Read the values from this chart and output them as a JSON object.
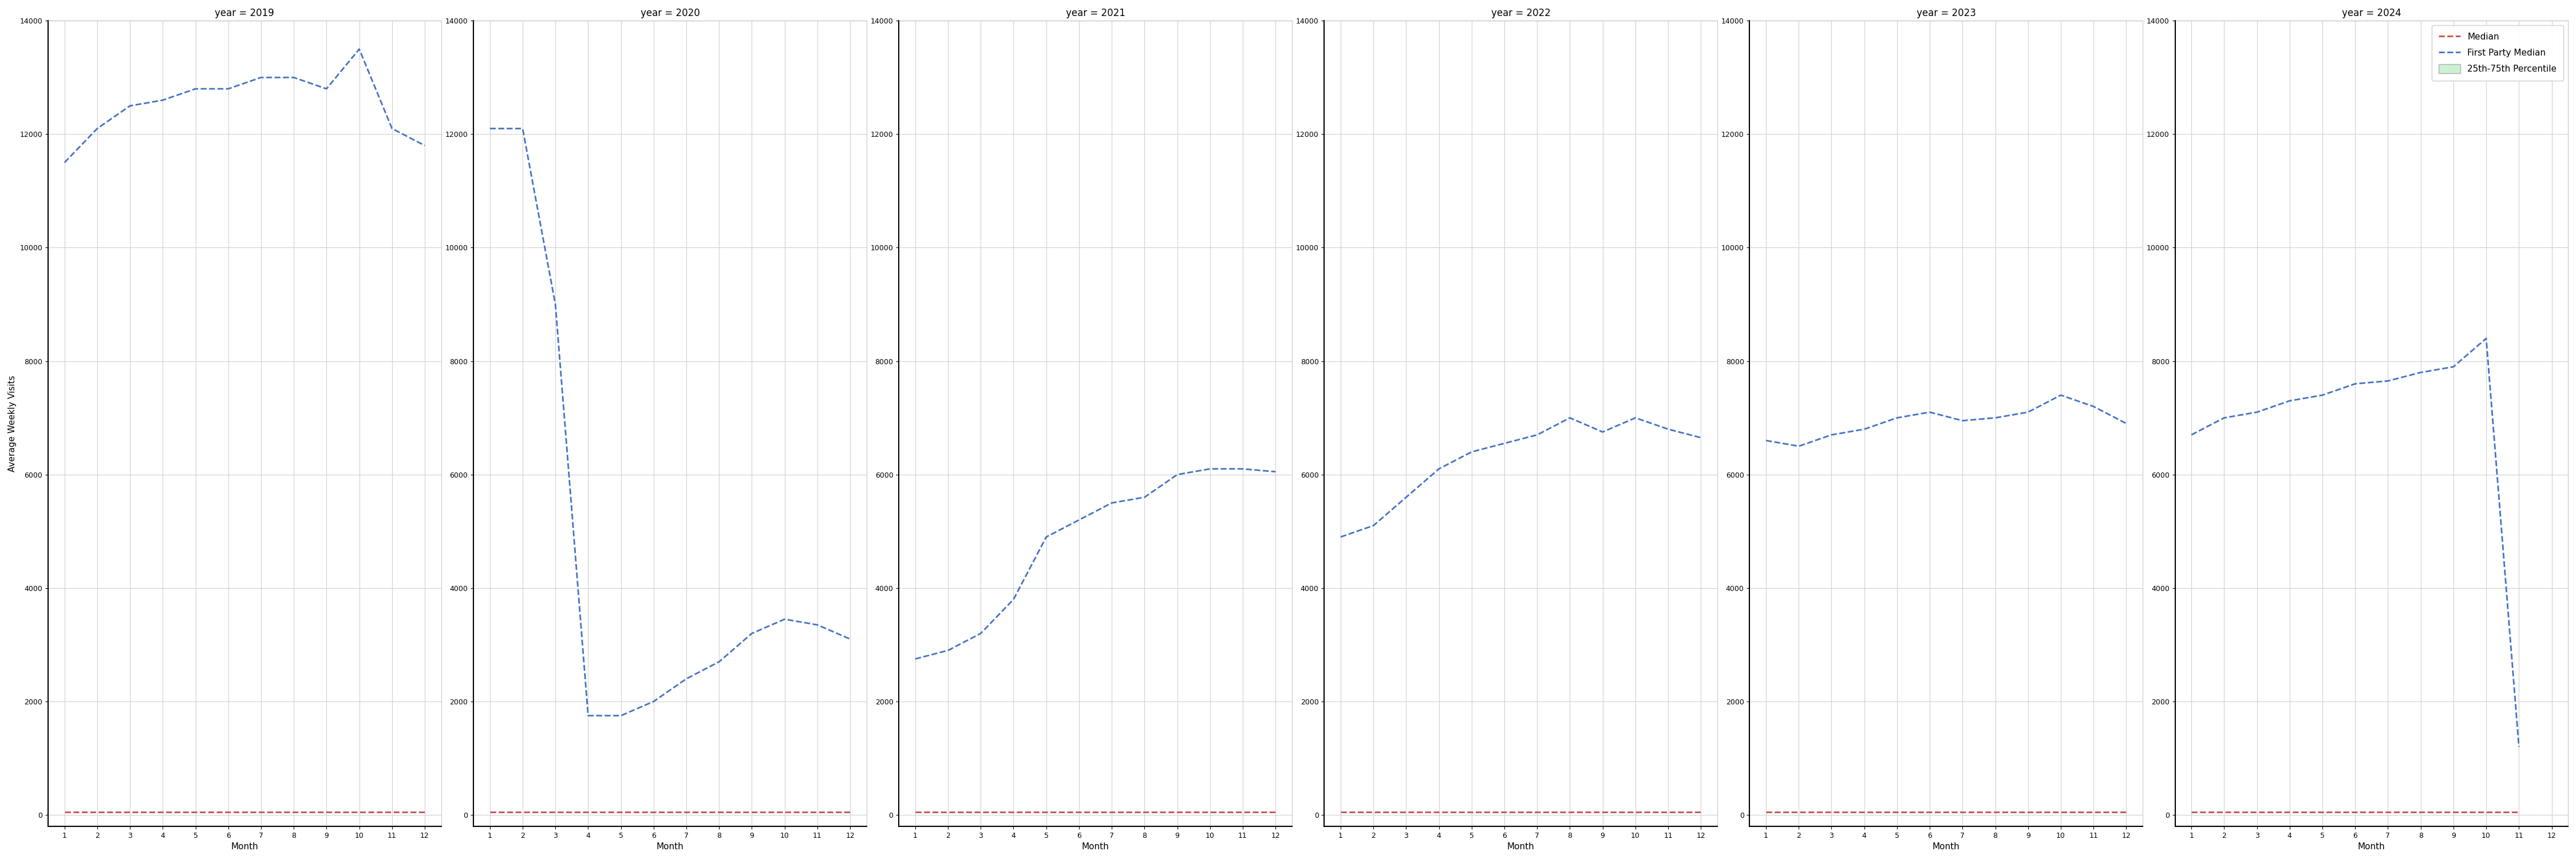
{
  "years": [
    2019,
    2020,
    2021,
    2022,
    2023,
    2024
  ],
  "first_party_median": {
    "2019": [
      11500,
      12100,
      12500,
      12600,
      12800,
      12800,
      13000,
      13000,
      12800,
      13500,
      12100,
      11800
    ],
    "2020": [
      12100,
      12100,
      9000,
      1750,
      1750,
      2000,
      2400,
      2700,
      3200,
      3450,
      3350,
      3100
    ],
    "2021": [
      2750,
      2900,
      3200,
      3800,
      4900,
      5200,
      5500,
      5600,
      6000,
      6100,
      6100,
      6050
    ],
    "2022": [
      4900,
      5100,
      5600,
      6100,
      6400,
      6550,
      6700,
      7000,
      6750,
      7000,
      6800,
      6650
    ],
    "2023": [
      6600,
      6500,
      6700,
      6800,
      7000,
      7100,
      6950,
      7000,
      7100,
      7400,
      7200,
      6900
    ],
    "2024": [
      6700,
      7000,
      7100,
      7300,
      7400,
      7600,
      7650,
      7800,
      7900,
      8400,
      1200,
      null
    ]
  },
  "median": {
    "2019": [
      50,
      50,
      50,
      50,
      50,
      50,
      50,
      50,
      50,
      50,
      50,
      50
    ],
    "2020": [
      50,
      50,
      50,
      50,
      50,
      50,
      50,
      50,
      50,
      50,
      50,
      50
    ],
    "2021": [
      50,
      50,
      50,
      50,
      50,
      50,
      50,
      50,
      50,
      50,
      50,
      50
    ],
    "2022": [
      50,
      50,
      50,
      50,
      50,
      50,
      50,
      50,
      50,
      50,
      50,
      50
    ],
    "2023": [
      50,
      50,
      50,
      50,
      50,
      50,
      50,
      50,
      50,
      50,
      50,
      50
    ],
    "2024": [
      50,
      50,
      50,
      50,
      50,
      50,
      50,
      50,
      50,
      50,
      50,
      null
    ]
  },
  "ylim": [
    -200,
    14000
  ],
  "yticks": [
    0,
    2000,
    4000,
    6000,
    8000,
    10000,
    12000,
    14000
  ],
  "xticks": [
    1,
    2,
    3,
    4,
    5,
    6,
    7,
    8,
    9,
    10,
    11,
    12
  ],
  "xlabel": "Month",
  "ylabel": "Average Weekly Visits",
  "blue_color": "#4472c4",
  "red_color": "#c0504d",
  "fill_color": "#c6efce",
  "grid_color": "#d0d0d0",
  "bg_color": "#ffffff",
  "line_width": 2.0,
  "title_fontsize": 12,
  "label_fontsize": 11,
  "tick_fontsize": 9
}
